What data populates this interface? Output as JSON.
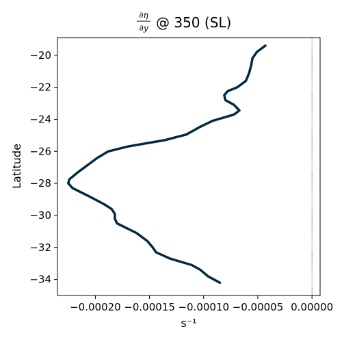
{
  "chart_data": {
    "type": "line",
    "title": {
      "fraction_numerator": "∂η",
      "fraction_denominator": "∂y",
      "suffix": "@ 350 (SL)"
    },
    "xlabel": "s⁻¹",
    "ylabel": "Latitude",
    "xlim": [
      -0.000235,
      7.5e-06
    ],
    "ylim": [
      -35.0,
      -18.9
    ],
    "xticks": [
      {
        "value": -0.0002,
        "label": "−0.00020"
      },
      {
        "value": -0.00015,
        "label": "−0.00015"
      },
      {
        "value": -0.0001,
        "label": "−0.00010"
      },
      {
        "value": -5e-05,
        "label": "−0.00005"
      },
      {
        "value": 0.0,
        "label": "0.00000"
      }
    ],
    "yticks": [
      {
        "value": -20,
        "label": "−20"
      },
      {
        "value": -22,
        "label": "−22"
      },
      {
        "value": -24,
        "label": "−24"
      },
      {
        "value": -26,
        "label": "−26"
      },
      {
        "value": -28,
        "label": "−28"
      },
      {
        "value": -30,
        "label": "−30"
      },
      {
        "value": -32,
        "label": "−32"
      },
      {
        "value": -34,
        "label": "−34"
      }
    ],
    "grid": false,
    "reference_line": {
      "x": 0.0,
      "style": "dotted",
      "color": "#8b1a1a"
    },
    "series": [
      {
        "color": "#002a3f",
        "points": [
          [
            -4.3e-05,
            -19.4
          ],
          [
            -5.1e-05,
            -19.8
          ],
          [
            -5.5e-05,
            -20.2
          ],
          [
            -5.6e-05,
            -20.6
          ],
          [
            -5.8e-05,
            -21.1
          ],
          [
            -6.1e-05,
            -21.6
          ],
          [
            -6.9e-05,
            -22.0
          ],
          [
            -7.8e-05,
            -22.25
          ],
          [
            -8.1e-05,
            -22.5
          ],
          [
            -8e-05,
            -22.8
          ],
          [
            -7.2e-05,
            -23.1
          ],
          [
            -6.7e-05,
            -23.45
          ],
          [
            -7.2e-05,
            -23.7
          ],
          [
            -9.2e-05,
            -24.1
          ],
          [
            -0.000104,
            -24.5
          ],
          [
            -0.000116,
            -24.95
          ],
          [
            -0.000136,
            -25.3
          ],
          [
            -0.00017,
            -25.7
          ],
          [
            -0.000188,
            -26.0
          ],
          [
            -0.000198,
            -26.4
          ],
          [
            -0.000206,
            -26.8
          ],
          [
            -0.000216,
            -27.3
          ],
          [
            -0.000224,
            -27.75
          ],
          [
            -0.000225,
            -28.0
          ],
          [
            -0.000221,
            -28.3
          ],
          [
            -0.000206,
            -28.8
          ],
          [
            -0.000192,
            -29.3
          ],
          [
            -0.000185,
            -29.6
          ],
          [
            -0.000182,
            -29.9
          ],
          [
            -0.000182,
            -30.2
          ],
          [
            -0.00018,
            -30.5
          ],
          [
            -0.000162,
            -31.1
          ],
          [
            -0.000152,
            -31.6
          ],
          [
            -0.000147,
            -32.0
          ],
          [
            -0.000144,
            -32.3
          ],
          [
            -0.000131,
            -32.7
          ],
          [
            -0.000111,
            -33.1
          ],
          [
            -0.000103,
            -33.4
          ],
          [
            -9.6e-05,
            -33.8
          ],
          [
            -8.5e-05,
            -34.2
          ]
        ]
      }
    ]
  }
}
